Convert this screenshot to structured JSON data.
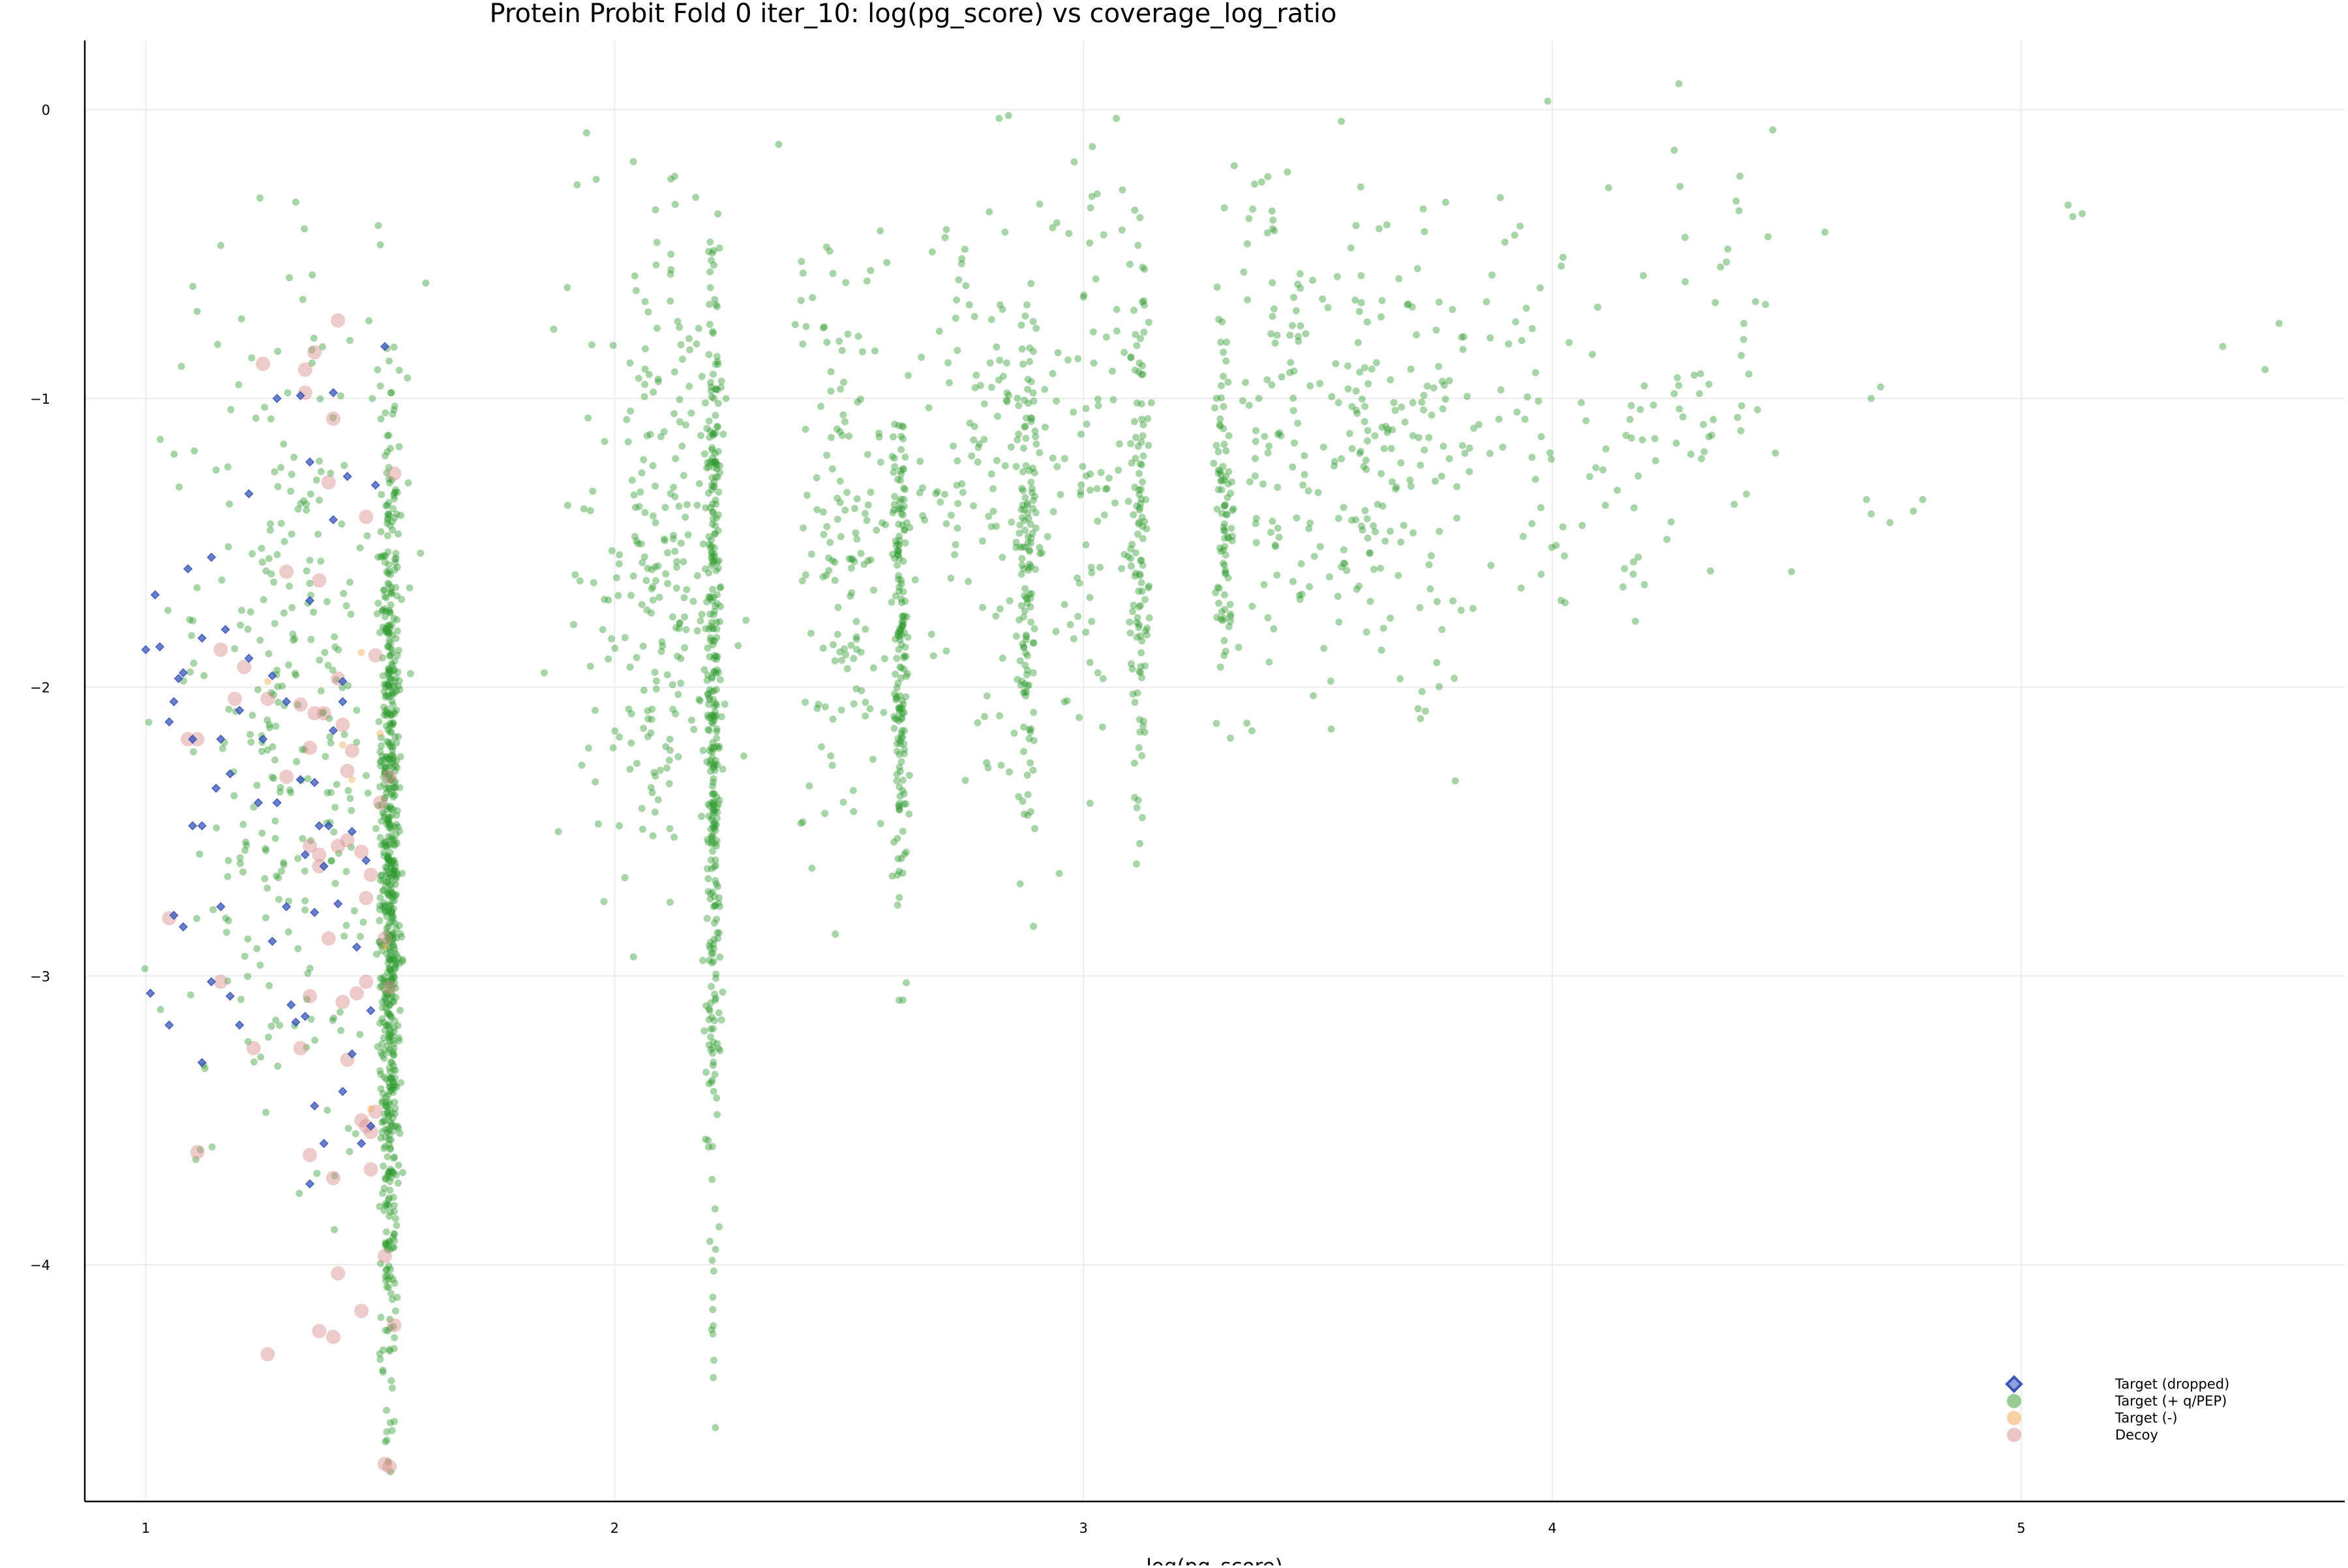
{
  "chart_data": {
    "type": "scatter",
    "title": "Protein Probit Fold 0 iter_10: log(pg_score) vs coverage_log_ratio",
    "xlabel": "log(pg_score)",
    "ylabel": "",
    "xlim": [
      0.87,
      5.69
    ],
    "ylim": [
      -4.82,
      0.24
    ],
    "xticks": [
      {
        "v": 1,
        "label": "1"
      },
      {
        "v": 2,
        "label": "2"
      },
      {
        "v": 3,
        "label": "3"
      },
      {
        "v": 4,
        "label": "4"
      },
      {
        "v": 5,
        "label": "5"
      }
    ],
    "yticks": [
      {
        "v": 0,
        "label": "0"
      },
      {
        "v": -1,
        "label": "−1"
      },
      {
        "v": -2,
        "label": "−2"
      },
      {
        "v": -3,
        "label": "−3"
      },
      {
        "v": -4,
        "label": "−4"
      }
    ],
    "grid": true,
    "legend_position": "bottom-right",
    "series": [
      {
        "name": "Target (dropped)",
        "color": "#3a55b8",
        "marker": "diamond",
        "points": [
          [
            1.0,
            -1.87
          ],
          [
            1.02,
            -1.68
          ],
          [
            1.06,
            -2.05
          ],
          [
            1.08,
            -1.95
          ],
          [
            1.05,
            -2.12
          ],
          [
            1.1,
            -2.18
          ],
          [
            1.09,
            -1.59
          ],
          [
            1.12,
            -1.83
          ],
          [
            1.14,
            -1.55
          ],
          [
            1.17,
            -1.8
          ],
          [
            1.18,
            -2.3
          ],
          [
            1.15,
            -2.35
          ],
          [
            1.2,
            -2.08
          ],
          [
            1.22,
            -1.9
          ],
          [
            1.25,
            -2.18
          ],
          [
            1.28,
            -2.4
          ],
          [
            1.3,
            -2.05
          ],
          [
            1.33,
            -2.32
          ],
          [
            1.35,
            -1.7
          ],
          [
            1.37,
            -2.48
          ],
          [
            1.34,
            -2.58
          ],
          [
            1.36,
            -2.33
          ],
          [
            1.39,
            -2.48
          ],
          [
            1.4,
            -2.15
          ],
          [
            1.42,
            -1.98
          ],
          [
            1.44,
            -2.5
          ],
          [
            1.42,
            -2.05
          ],
          [
            1.1,
            -2.48
          ],
          [
            1.12,
            -2.48
          ],
          [
            1.08,
            -2.83
          ],
          [
            1.06,
            -2.79
          ],
          [
            1.16,
            -2.76
          ],
          [
            1.14,
            -3.02
          ],
          [
            1.18,
            -3.07
          ],
          [
            1.2,
            -3.17
          ],
          [
            1.12,
            -3.3
          ],
          [
            1.05,
            -3.17
          ],
          [
            1.01,
            -3.06
          ],
          [
            1.27,
            -2.88
          ],
          [
            1.31,
            -3.1
          ],
          [
            1.36,
            -3.45
          ],
          [
            1.38,
            -3.58
          ],
          [
            1.35,
            -3.72
          ],
          [
            1.42,
            -3.4
          ],
          [
            1.44,
            -3.27
          ],
          [
            1.46,
            -3.58
          ],
          [
            1.48,
            -3.52
          ],
          [
            1.32,
            -3.16
          ],
          [
            1.34,
            -3.14
          ],
          [
            1.22,
            -1.33
          ],
          [
            1.35,
            -1.22
          ],
          [
            1.4,
            -1.42
          ],
          [
            1.43,
            -1.27
          ],
          [
            1.49,
            -1.3
          ],
          [
            1.51,
            -0.82
          ],
          [
            1.4,
            -0.98
          ],
          [
            1.28,
            -1.0
          ],
          [
            1.33,
            -0.99
          ],
          [
            1.47,
            -2.6
          ],
          [
            1.38,
            -2.62
          ],
          [
            1.45,
            -2.9
          ],
          [
            1.48,
            -3.12
          ],
          [
            1.3,
            -2.76
          ],
          [
            1.03,
            -1.86
          ],
          [
            1.07,
            -1.97
          ],
          [
            1.16,
            -2.18
          ],
          [
            1.27,
            -1.96
          ],
          [
            1.36,
            -2.78
          ],
          [
            1.24,
            -2.4
          ],
          [
            1.41,
            -2.75
          ]
        ]
      },
      {
        "name": "Target (+ q/PEP)",
        "color": "#2f9a2f",
        "marker": "circle",
        "clusters": [
          {
            "x": 1.52,
            "x_spread": 0.02,
            "y_min": -4.75,
            "y_max": -0.75,
            "y_center": -2.7,
            "count": 720
          },
          {
            "x": 1.3,
            "x_spread": 0.24,
            "y_min": -3.9,
            "y_max": -0.3,
            "y_center": -2.1,
            "count": 300
          },
          {
            "x": 2.21,
            "x_spread": 0.015,
            "y_min": -4.57,
            "y_max": -0.45,
            "y_center": -2.0,
            "count": 350
          },
          {
            "x": 2.08,
            "x_spread": 0.14,
            "y_min": -3.0,
            "y_max": -0.2,
            "y_center": -1.6,
            "count": 230
          },
          {
            "x": 2.61,
            "x_spread": 0.015,
            "y_min": -3.2,
            "y_max": -1.0,
            "y_center": -1.8,
            "count": 170
          },
          {
            "x": 2.5,
            "x_spread": 0.12,
            "y_min": -3.35,
            "y_max": -0.4,
            "y_center": -1.5,
            "count": 150
          },
          {
            "x": 2.88,
            "x_spread": 0.02,
            "y_min": -2.85,
            "y_max": -0.6,
            "y_center": -1.5,
            "count": 140
          },
          {
            "x": 2.76,
            "x_spread": 0.12,
            "y_min": -2.6,
            "y_max": -0.3,
            "y_center": -1.2,
            "count": 110
          },
          {
            "x": 3.12,
            "x_spread": 0.02,
            "y_min": -2.85,
            "y_max": -0.35,
            "y_center": -1.5,
            "count": 120
          },
          {
            "x": 3.01,
            "x_spread": 0.1,
            "y_min": -2.9,
            "y_max": -0.05,
            "y_center": -1.1,
            "count": 90
          },
          {
            "x": 3.3,
            "x_spread": 0.02,
            "y_min": -2.3,
            "y_max": -0.6,
            "y_center": -1.5,
            "count": 90
          },
          {
            "x": 3.42,
            "x_spread": 0.12,
            "y_min": -2.3,
            "y_max": -0.15,
            "y_center": -1.0,
            "count": 110
          },
          {
            "x": 3.6,
            "x_spread": 0.08,
            "y_min": -2.1,
            "y_max": -0.05,
            "y_center": -1.2,
            "count": 90
          },
          {
            "x": 3.75,
            "x_spread": 0.1,
            "y_min": -2.35,
            "y_max": -0.1,
            "y_center": -1.2,
            "count": 70
          },
          {
            "x": 3.95,
            "x_spread": 0.12,
            "y_min": -1.8,
            "y_max": 0.03,
            "y_center": -0.9,
            "count": 45
          },
          {
            "x": 4.15,
            "x_spread": 0.14,
            "y_min": -1.8,
            "y_max": -0.3,
            "y_center": -1.1,
            "count": 40
          },
          {
            "x": 4.35,
            "x_spread": 0.14,
            "y_min": -1.7,
            "y_max": 0.1,
            "y_center": -0.9,
            "count": 35
          }
        ],
        "points": [
          [
            1.94,
            -0.08
          ],
          [
            2.04,
            -0.18
          ],
          [
            1.92,
            -0.26
          ],
          [
            2.12,
            -0.24
          ],
          [
            2.35,
            -0.12
          ],
          [
            2.84,
            -0.02
          ],
          [
            2.82,
            -0.03
          ],
          [
            3.07,
            -0.03
          ],
          [
            3.55,
            -0.04
          ],
          [
            3.99,
            0.03
          ],
          [
            4.27,
            0.09
          ],
          [
            4.47,
            -0.07
          ],
          [
            4.26,
            -0.14
          ],
          [
            4.12,
            -0.27
          ],
          [
            4.4,
            -0.23
          ],
          [
            4.46,
            -0.44
          ],
          [
            1.32,
            -0.32
          ],
          [
            1.16,
            -0.47
          ],
          [
            5.1,
            -0.33
          ],
          [
            5.13,
            -0.36
          ],
          [
            5.11,
            -0.37
          ],
          [
            5.55,
            -0.74
          ],
          [
            5.43,
            -0.82
          ],
          [
            5.52,
            -0.9
          ],
          [
            4.7,
            -0.96
          ],
          [
            4.68,
            -1.0
          ],
          [
            4.79,
            -1.35
          ],
          [
            4.77,
            -1.39
          ],
          [
            4.67,
            -1.35
          ],
          [
            4.68,
            -1.4
          ],
          [
            4.72,
            -1.43
          ],
          [
            4.51,
            -1.6
          ],
          [
            1.85,
            -1.95
          ],
          [
            1.88,
            -2.5
          ],
          [
            1.87,
            -0.76
          ],
          [
            1.9,
            -1.37
          ],
          [
            1.93,
            -2.27
          ],
          [
            2.01,
            -2.48
          ]
        ]
      },
      {
        "name": "Target (-)",
        "color": "#f2a64a",
        "marker": "circle",
        "points": [
          [
            1.26,
            -1.98
          ],
          [
            1.44,
            -2.32
          ],
          [
            1.46,
            -1.88
          ],
          [
            1.5,
            -2.16
          ],
          [
            1.51,
            -2.9
          ],
          [
            1.48,
            -3.46
          ],
          [
            1.42,
            -2.2
          ]
        ]
      },
      {
        "name": "Decoy",
        "color": "#d88c8c",
        "marker": "circle",
        "points": [
          [
            1.25,
            -0.88
          ],
          [
            1.34,
            -0.9
          ],
          [
            1.34,
            -0.98
          ],
          [
            1.36,
            -0.84
          ],
          [
            1.41,
            -0.73
          ],
          [
            1.4,
            -1.07
          ],
          [
            1.39,
            -1.29
          ],
          [
            1.53,
            -1.26
          ],
          [
            1.47,
            -1.41
          ],
          [
            1.3,
            -1.6
          ],
          [
            1.37,
            -1.63
          ],
          [
            1.16,
            -1.87
          ],
          [
            1.21,
            -1.93
          ],
          [
            1.19,
            -2.04
          ],
          [
            1.09,
            -2.18
          ],
          [
            1.11,
            -2.18
          ],
          [
            1.26,
            -2.04
          ],
          [
            1.36,
            -2.09
          ],
          [
            1.33,
            -2.06
          ],
          [
            1.38,
            -2.09
          ],
          [
            1.42,
            -2.13
          ],
          [
            1.41,
            -1.97
          ],
          [
            1.49,
            -1.89
          ],
          [
            1.44,
            -2.22
          ],
          [
            1.35,
            -2.21
          ],
          [
            1.3,
            -2.31
          ],
          [
            1.52,
            -2.31
          ],
          [
            1.43,
            -2.29
          ],
          [
            1.35,
            -2.55
          ],
          [
            1.37,
            -2.58
          ],
          [
            1.37,
            -2.62
          ],
          [
            1.41,
            -2.55
          ],
          [
            1.43,
            -2.53
          ],
          [
            1.46,
            -2.57
          ],
          [
            1.48,
            -2.65
          ],
          [
            1.47,
            -2.73
          ],
          [
            1.05,
            -2.8
          ],
          [
            1.39,
            -2.87
          ],
          [
            1.51,
            -2.87
          ],
          [
            1.16,
            -3.02
          ],
          [
            1.35,
            -3.07
          ],
          [
            1.42,
            -3.09
          ],
          [
            1.45,
            -3.06
          ],
          [
            1.47,
            -3.02
          ],
          [
            1.23,
            -3.25
          ],
          [
            1.33,
            -3.25
          ],
          [
            1.43,
            -3.29
          ],
          [
            1.49,
            -3.47
          ],
          [
            1.46,
            -3.5
          ],
          [
            1.47,
            -3.52
          ],
          [
            1.48,
            -3.54
          ],
          [
            1.35,
            -3.62
          ],
          [
            1.11,
            -3.61
          ],
          [
            1.48,
            -3.67
          ],
          [
            1.4,
            -3.7
          ],
          [
            1.51,
            -3.97
          ],
          [
            1.41,
            -4.03
          ],
          [
            1.46,
            -4.16
          ],
          [
            1.53,
            -4.21
          ],
          [
            1.37,
            -4.23
          ],
          [
            1.4,
            -4.25
          ],
          [
            1.26,
            -4.31
          ],
          [
            1.52,
            -4.7
          ],
          [
            1.51,
            -4.69
          ],
          [
            1.52,
            -3.04
          ],
          [
            1.5,
            -2.4
          ]
        ]
      }
    ]
  }
}
